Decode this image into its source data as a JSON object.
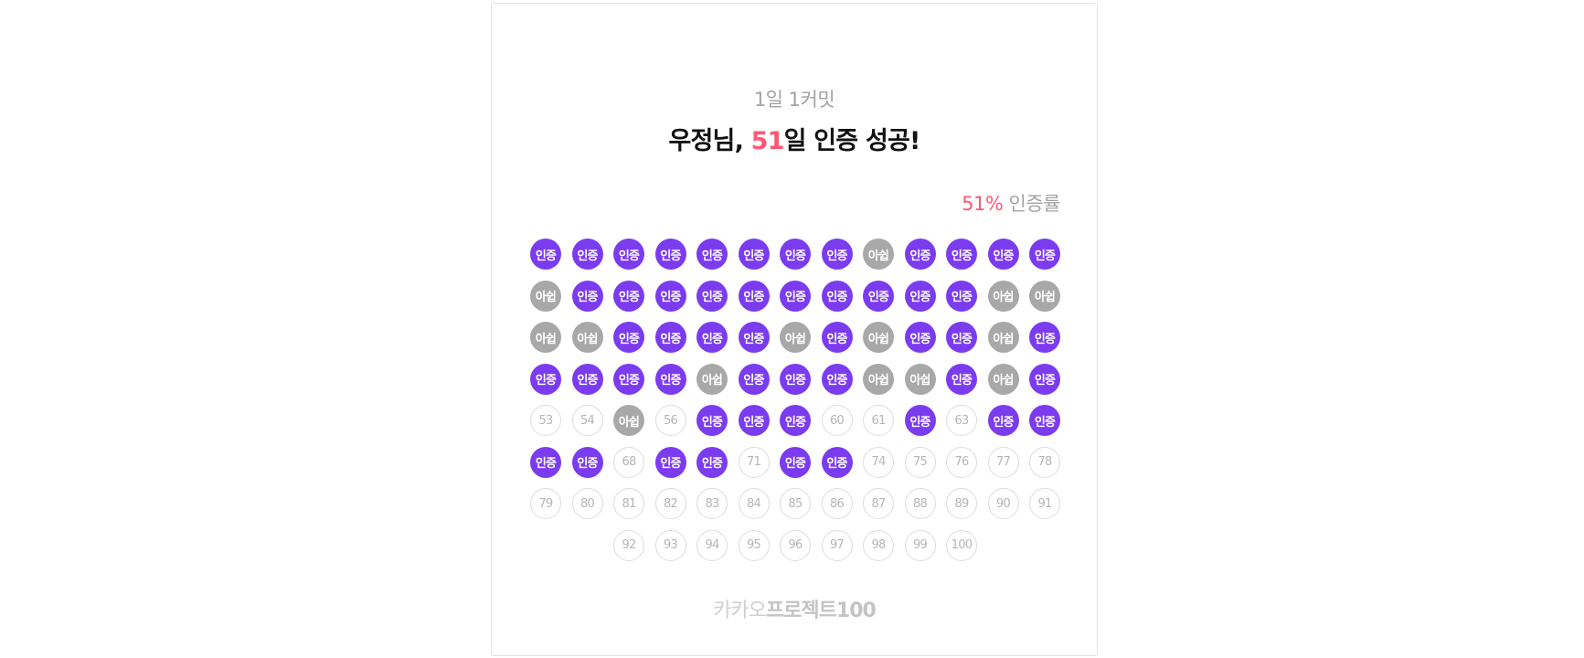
{
  "header": {
    "subtitle": "1일 1커밋",
    "title_prefix": "우정님, ",
    "title_count": "51",
    "title_suffix": "일 인증 성공!"
  },
  "rate": {
    "percent": "51%",
    "label": " 인증률"
  },
  "status_labels": {
    "certified": "인증",
    "rest": "아쉽"
  },
  "colors": {
    "certified": "#7b3cf0",
    "rest": "#a8a8a8",
    "accent": "#ff5773",
    "empty_border": "#dcdcdc"
  },
  "days": [
    {
      "day": 1,
      "status": "certified"
    },
    {
      "day": 2,
      "status": "certified"
    },
    {
      "day": 3,
      "status": "certified"
    },
    {
      "day": 4,
      "status": "certified"
    },
    {
      "day": 5,
      "status": "certified"
    },
    {
      "day": 6,
      "status": "certified"
    },
    {
      "day": 7,
      "status": "certified"
    },
    {
      "day": 8,
      "status": "certified"
    },
    {
      "day": 9,
      "status": "rest"
    },
    {
      "day": 10,
      "status": "certified"
    },
    {
      "day": 11,
      "status": "certified"
    },
    {
      "day": 12,
      "status": "certified"
    },
    {
      "day": 13,
      "status": "certified"
    },
    {
      "day": 14,
      "status": "rest"
    },
    {
      "day": 15,
      "status": "certified"
    },
    {
      "day": 16,
      "status": "certified"
    },
    {
      "day": 17,
      "status": "certified"
    },
    {
      "day": 18,
      "status": "certified"
    },
    {
      "day": 19,
      "status": "certified"
    },
    {
      "day": 20,
      "status": "certified"
    },
    {
      "day": 21,
      "status": "certified"
    },
    {
      "day": 22,
      "status": "certified"
    },
    {
      "day": 23,
      "status": "certified"
    },
    {
      "day": 24,
      "status": "certified"
    },
    {
      "day": 25,
      "status": "rest"
    },
    {
      "day": 26,
      "status": "rest"
    },
    {
      "day": 27,
      "status": "rest"
    },
    {
      "day": 28,
      "status": "rest"
    },
    {
      "day": 29,
      "status": "certified"
    },
    {
      "day": 30,
      "status": "certified"
    },
    {
      "day": 31,
      "status": "certified"
    },
    {
      "day": 32,
      "status": "certified"
    },
    {
      "day": 33,
      "status": "rest"
    },
    {
      "day": 34,
      "status": "certified"
    },
    {
      "day": 35,
      "status": "rest"
    },
    {
      "day": 36,
      "status": "certified"
    },
    {
      "day": 37,
      "status": "certified"
    },
    {
      "day": 38,
      "status": "rest"
    },
    {
      "day": 39,
      "status": "certified"
    },
    {
      "day": 40,
      "status": "certified"
    },
    {
      "day": 41,
      "status": "certified"
    },
    {
      "day": 42,
      "status": "certified"
    },
    {
      "day": 43,
      "status": "certified"
    },
    {
      "day": 44,
      "status": "rest"
    },
    {
      "day": 45,
      "status": "certified"
    },
    {
      "day": 46,
      "status": "certified"
    },
    {
      "day": 47,
      "status": "certified"
    },
    {
      "day": 48,
      "status": "rest"
    },
    {
      "day": 49,
      "status": "rest"
    },
    {
      "day": 50,
      "status": "certified"
    },
    {
      "day": 51,
      "status": "rest"
    },
    {
      "day": 52,
      "status": "certified"
    },
    {
      "day": 53,
      "status": "empty"
    },
    {
      "day": 54,
      "status": "empty"
    },
    {
      "day": 55,
      "status": "rest"
    },
    {
      "day": 56,
      "status": "empty"
    },
    {
      "day": 57,
      "status": "certified"
    },
    {
      "day": 58,
      "status": "certified"
    },
    {
      "day": 59,
      "status": "certified"
    },
    {
      "day": 60,
      "status": "empty"
    },
    {
      "day": 61,
      "status": "empty"
    },
    {
      "day": 62,
      "status": "certified"
    },
    {
      "day": 63,
      "status": "empty"
    },
    {
      "day": 64,
      "status": "certified"
    },
    {
      "day": 65,
      "status": "certified"
    },
    {
      "day": 66,
      "status": "certified"
    },
    {
      "day": 67,
      "status": "certified"
    },
    {
      "day": 68,
      "status": "empty"
    },
    {
      "day": 69,
      "status": "certified"
    },
    {
      "day": 70,
      "status": "certified"
    },
    {
      "day": 71,
      "status": "empty"
    },
    {
      "day": 72,
      "status": "certified"
    },
    {
      "day": 73,
      "status": "certified"
    },
    {
      "day": 74,
      "status": "empty"
    },
    {
      "day": 75,
      "status": "empty"
    },
    {
      "day": 76,
      "status": "empty"
    },
    {
      "day": 77,
      "status": "empty"
    },
    {
      "day": 78,
      "status": "empty"
    },
    {
      "day": 79,
      "status": "empty"
    },
    {
      "day": 80,
      "status": "empty"
    },
    {
      "day": 81,
      "status": "empty"
    },
    {
      "day": 82,
      "status": "empty"
    },
    {
      "day": 83,
      "status": "empty"
    },
    {
      "day": 84,
      "status": "empty"
    },
    {
      "day": 85,
      "status": "empty"
    },
    {
      "day": 86,
      "status": "empty"
    },
    {
      "day": 87,
      "status": "empty"
    },
    {
      "day": 88,
      "status": "empty"
    },
    {
      "day": 89,
      "status": "empty"
    },
    {
      "day": 90,
      "status": "empty"
    },
    {
      "day": 91,
      "status": "empty"
    },
    {
      "day": 92,
      "status": "empty"
    },
    {
      "day": 93,
      "status": "empty"
    },
    {
      "day": 94,
      "status": "empty"
    },
    {
      "day": 95,
      "status": "empty"
    },
    {
      "day": 96,
      "status": "empty"
    },
    {
      "day": 97,
      "status": "empty"
    },
    {
      "day": 98,
      "status": "empty"
    },
    {
      "day": 99,
      "status": "empty"
    },
    {
      "day": 100,
      "status": "empty"
    }
  ],
  "footer": {
    "brand_light": "카카오",
    "brand_bold": "프로젝트100"
  }
}
